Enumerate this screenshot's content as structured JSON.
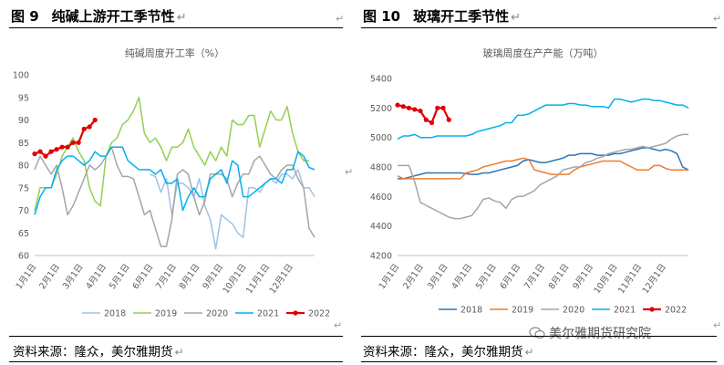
{
  "left_title": {
    "num": "图 9",
    "text": "纯碱上游开工季节性"
  },
  "right_title": {
    "num": "图 10",
    "text": "玻璃开工季节性"
  },
  "source_left": "资料来源：隆众，美尔雅期货",
  "source_right": "资料来源：隆众，美尔雅期货",
  "watermark": "美尔雅期货研究院",
  "month_ticks": [
    "1月1日",
    "2月1日",
    "3月1日",
    "4月1日",
    "5月1日",
    "6月1日",
    "7月1日",
    "8月1日",
    "9月1日",
    "10月1日",
    "11月1日",
    "12月1日"
  ],
  "chart_data": [
    {
      "type": "line",
      "title": "纯碱周度开工率（%）",
      "ylim": [
        60,
        100
      ],
      "yticks": [
        60,
        65,
        70,
        75,
        80,
        85,
        90,
        95,
        100
      ],
      "weeks": 52,
      "series": [
        {
          "name": "2018",
          "color": "#9DC3E6",
          "width": 1.5,
          "markers": false,
          "values": [
            null,
            null,
            null,
            null,
            null,
            null,
            null,
            null,
            null,
            null,
            null,
            null,
            null,
            null,
            null,
            null,
            null,
            null,
            null,
            null,
            null,
            78,
            77.5,
            74,
            77,
            69,
            76,
            76,
            75,
            73,
            77,
            71,
            68,
            61.5,
            69,
            68,
            67,
            65,
            64,
            75,
            75,
            74,
            76,
            77,
            76,
            78,
            78,
            77,
            79,
            75,
            75,
            73
          ]
        },
        {
          "name": "2019",
          "color": "#92D050",
          "width": 1.5,
          "markers": false,
          "values": [
            70,
            75,
            75,
            75,
            78,
            82,
            84,
            86,
            83,
            81,
            75,
            72,
            71,
            82,
            85,
            86,
            89,
            90,
            92,
            95,
            87,
            85,
            86,
            84,
            81,
            84,
            84,
            85,
            88,
            84,
            82,
            80,
            83,
            81,
            84,
            82,
            90,
            89,
            89,
            91,
            91,
            84,
            88,
            92,
            90,
            90,
            93,
            87,
            83,
            81,
            81,
            null
          ]
        },
        {
          "name": "2020",
          "color": "#A5A5A5",
          "width": 1.5,
          "markers": false,
          "values": [
            79,
            82,
            80,
            78,
            80,
            75,
            69,
            71,
            74,
            77,
            80,
            79,
            80,
            82,
            84,
            80,
            77.5,
            77.5,
            77,
            73,
            69,
            70,
            66,
            62,
            62,
            68,
            78,
            79,
            78,
            73,
            69,
            72,
            78,
            78,
            78,
            77,
            73,
            76,
            78,
            78,
            81,
            82,
            80,
            78,
            77,
            79,
            80,
            80,
            77,
            75,
            66,
            64
          ]
        },
        {
          "name": "2021",
          "color": "#00B0F0",
          "width": 1.5,
          "markers": false,
          "values": [
            69,
            73,
            75,
            75,
            79,
            81,
            82,
            82,
            81,
            80,
            81,
            83,
            82,
            82,
            84,
            84,
            84,
            81,
            80,
            79,
            79,
            79,
            78,
            79,
            76,
            76,
            77,
            70,
            73,
            75,
            73,
            73,
            77,
            78,
            79,
            76,
            81,
            80,
            73,
            73,
            74,
            75,
            76,
            77,
            77,
            76,
            79,
            79,
            83,
            82,
            79.5,
            79
          ]
        },
        {
          "name": "2022",
          "color": "#E00000",
          "width": 2.2,
          "markers": true,
          "values": [
            82.5,
            83,
            82,
            83,
            83.5,
            84,
            84,
            85,
            85,
            88,
            88.5,
            90,
            null,
            null,
            null,
            null,
            null,
            null,
            null,
            null,
            null,
            null,
            null,
            null,
            null,
            null,
            null,
            null,
            null,
            null,
            null,
            null,
            null,
            null,
            null,
            null,
            null,
            null,
            null,
            null,
            null,
            null,
            null,
            null,
            null,
            null,
            null,
            null,
            null,
            null,
            null,
            null
          ]
        }
      ]
    },
    {
      "type": "line",
      "title": "玻璃周度在产产能（万吨）",
      "ylim": [
        4200,
        5400
      ],
      "yticks": [
        4200,
        4400,
        4600,
        4800,
        5000,
        5200,
        5400
      ],
      "weeks": 52,
      "series": [
        {
          "name": "2018",
          "color": "#2E75B6",
          "width": 1.5,
          "markers": false,
          "values": [
            4720,
            4720,
            4730,
            4740,
            4750,
            4760,
            4760,
            4760,
            4760,
            4760,
            4760,
            4760,
            4755,
            4750,
            4750,
            4760,
            4760,
            4770,
            4780,
            4790,
            4800,
            4810,
            4840,
            4850,
            4840,
            4830,
            4830,
            4840,
            4850,
            4860,
            4880,
            4880,
            4890,
            4890,
            4890,
            4880,
            4880,
            4880,
            4890,
            4890,
            4900,
            4910,
            4920,
            4930,
            4930,
            4920,
            4910,
            4920,
            4910,
            4890,
            4800,
            4780
          ]
        },
        {
          "name": "2019",
          "color": "#ED7D31",
          "width": 1.5,
          "markers": false,
          "values": [
            4740,
            4720,
            4720,
            4720,
            4720,
            4720,
            4720,
            4720,
            4720,
            4720,
            4720,
            4720,
            4760,
            4770,
            4780,
            4800,
            4810,
            4820,
            4830,
            4840,
            4840,
            4850,
            4860,
            4850,
            4780,
            4770,
            4760,
            4750,
            4750,
            4750,
            4750,
            4780,
            4800,
            4810,
            4820,
            4830,
            4840,
            4840,
            4840,
            4840,
            4820,
            4800,
            4780,
            4780,
            4780,
            4810,
            4810,
            4790,
            4780,
            4780,
            4780,
            4780
          ]
        },
        {
          "name": "2020",
          "color": "#A5A5A5",
          "width": 1.5,
          "markers": false,
          "values": [
            4810,
            4810,
            4810,
            4700,
            4560,
            4540,
            4520,
            4500,
            4480,
            4460,
            4450,
            4450,
            4460,
            4470,
            4520,
            4580,
            4590,
            4570,
            4560,
            4520,
            4580,
            4600,
            4600,
            4620,
            4640,
            4680,
            4700,
            4720,
            4740,
            4780,
            4790,
            4800,
            4800,
            4830,
            4840,
            4860,
            4870,
            4890,
            4900,
            4910,
            4920,
            4920,
            4930,
            4940,
            4930,
            4940,
            4950,
            4960,
            4990,
            5010,
            5020,
            5020
          ]
        },
        {
          "name": "2021",
          "color": "#00B0F0",
          "width": 1.5,
          "markers": false,
          "values": [
            4990,
            5010,
            5010,
            5020,
            5000,
            5000,
            5000,
            5010,
            5010,
            5010,
            5010,
            5010,
            5010,
            5020,
            5040,
            5050,
            5060,
            5070,
            5080,
            5100,
            5100,
            5150,
            5150,
            5160,
            5180,
            5200,
            5220,
            5220,
            5220,
            5220,
            5230,
            5230,
            5220,
            5220,
            5210,
            5210,
            5210,
            5200,
            5260,
            5260,
            5250,
            5240,
            5250,
            5260,
            5260,
            5250,
            5250,
            5240,
            5230,
            5220,
            5220,
            5200
          ]
        },
        {
          "name": "2022",
          "color": "#E00000",
          "width": 2.2,
          "markers": true,
          "values": [
            5220,
            5210,
            5200,
            5190,
            5180,
            5120,
            5100,
            5200,
            5200,
            5120,
            null,
            null,
            null,
            null,
            null,
            null,
            null,
            null,
            null,
            null,
            null,
            null,
            null,
            null,
            null,
            null,
            null,
            null,
            null,
            null,
            null,
            null,
            null,
            null,
            null,
            null,
            null,
            null,
            null,
            null,
            null,
            null,
            null,
            null,
            null,
            null,
            null,
            null,
            null,
            null,
            null,
            null
          ]
        }
      ]
    }
  ]
}
